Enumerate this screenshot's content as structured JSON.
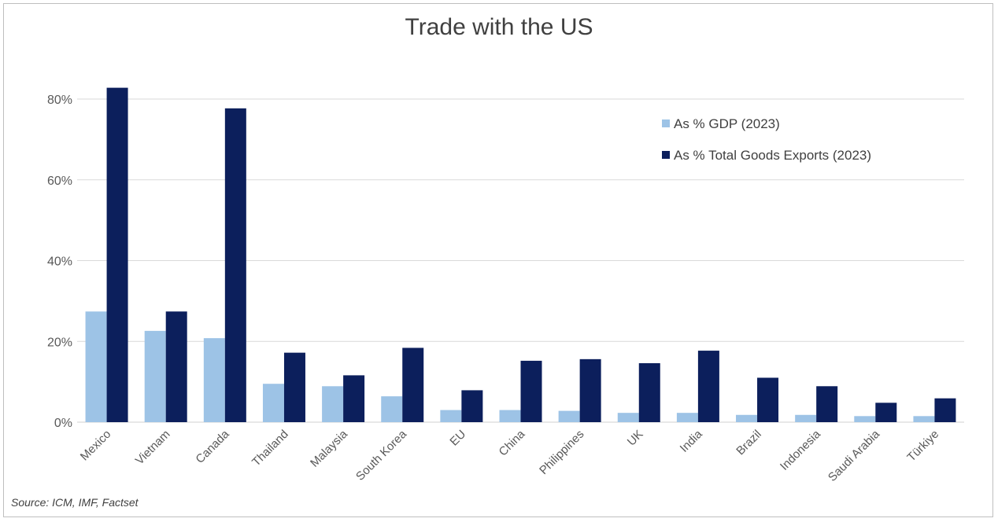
{
  "chart_data": {
    "type": "bar",
    "title": "Trade with the US",
    "xlabel": "",
    "ylabel": "",
    "ylim": [
      0,
      0.8
    ],
    "yticks": [
      "0%",
      "20%",
      "40%",
      "60%",
      "80%"
    ],
    "ytick_values": [
      0,
      0.2,
      0.4,
      0.6,
      0.8
    ],
    "grid": true,
    "legend_position": "top-right",
    "categories": [
      "Mexico",
      "Vietnam",
      "Canada",
      "Thailand",
      "Malaysia",
      "South Korea",
      "EU",
      "China",
      "Philippines",
      "UK",
      "India",
      "Brazil",
      "Indonesia",
      "Saudi Arabia",
      "Türkiye"
    ],
    "series": [
      {
        "name": "As % GDP (2023)",
        "color": "#9dc3e6",
        "values": [
          0.274,
          0.226,
          0.208,
          0.095,
          0.089,
          0.064,
          0.03,
          0.03,
          0.028,
          0.023,
          0.023,
          0.018,
          0.018,
          0.015,
          0.015
        ]
      },
      {
        "name": "As % Total Goods Exports (2023)",
        "color": "#0c1f5c",
        "values": [
          0.828,
          0.274,
          0.777,
          0.172,
          0.116,
          0.184,
          0.079,
          0.152,
          0.156,
          0.146,
          0.177,
          0.11,
          0.089,
          0.048,
          0.059
        ]
      }
    ],
    "source": "Source: ICM, IMF, Factset"
  }
}
